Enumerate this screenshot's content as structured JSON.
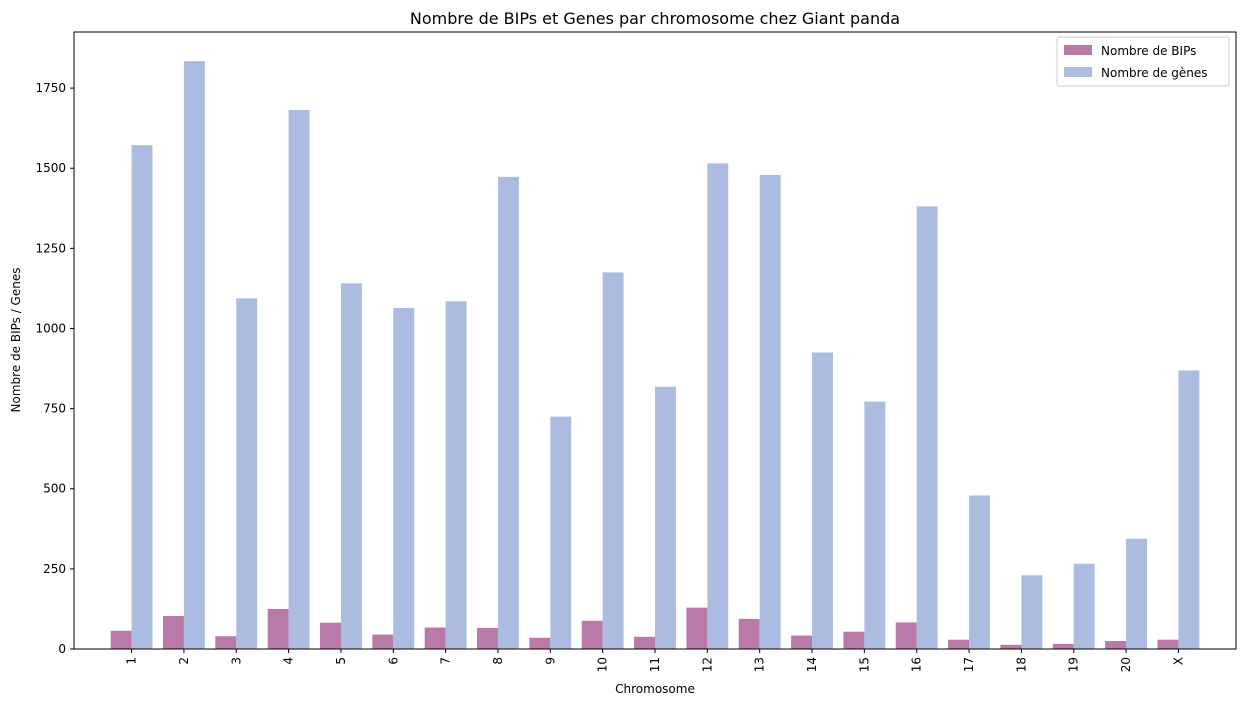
{
  "chart_data": {
    "type": "bar",
    "title": "Nombre de BIPs et Genes par chromosome chez Giant panda",
    "xlabel": "Chromosome",
    "ylabel": "Nombre de BIPs / Genes",
    "categories": [
      "1",
      "2",
      "3",
      "4",
      "5",
      "6",
      "7",
      "8",
      "9",
      "10",
      "11",
      "12",
      "13",
      "14",
      "15",
      "16",
      "17",
      "18",
      "19",
      "20",
      "X"
    ],
    "ylim": [
      0,
      1925
    ],
    "yticks": [
      0,
      250,
      500,
      750,
      1000,
      1250,
      1500,
      1750
    ],
    "grid": false,
    "legend_position": "top-right",
    "series": [
      {
        "name": "Nombre de BIPs",
        "color": "#b97aa8",
        "values": [
          57,
          103,
          40,
          125,
          82,
          45,
          67,
          66,
          35,
          88,
          38,
          129,
          94,
          42,
          54,
          83,
          29,
          13,
          16,
          25,
          29
        ]
      },
      {
        "name": "Nombre de gènes",
        "color": "#abbce0",
        "values": [
          1572,
          1834,
          1094,
          1682,
          1141,
          1064,
          1085,
          1473,
          725,
          1175,
          818,
          1515,
          1479,
          925,
          772,
          1381,
          479,
          230,
          266,
          344,
          869
        ]
      }
    ]
  }
}
